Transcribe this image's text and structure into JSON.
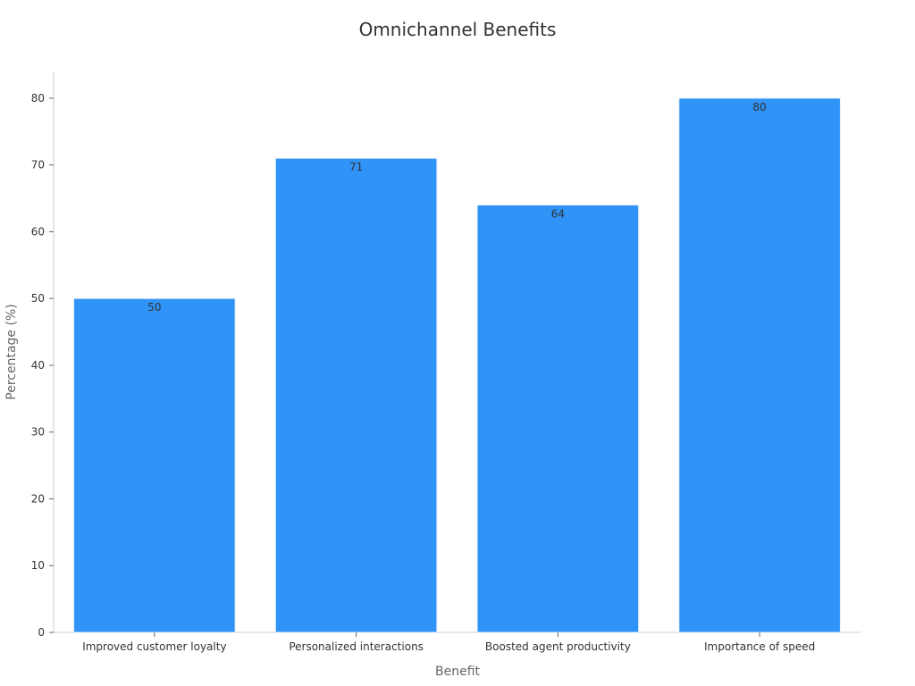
{
  "chart_data": {
    "type": "bar",
    "title": "Omnichannel Benefits",
    "xlabel": "Benefit",
    "ylabel": "Percentage (%)",
    "categories": [
      "Improved customer loyalty",
      "Personalized interactions",
      "Boosted agent productivity",
      "Importance of speed"
    ],
    "values": [
      50,
      71,
      64,
      80
    ],
    "ylim": [
      0,
      84
    ],
    "yticks": [
      0,
      10,
      20,
      30,
      40,
      50,
      60,
      70,
      80
    ],
    "bar_color": "#2f93f7",
    "data_labels": true,
    "grid": false,
    "legend": "none"
  }
}
